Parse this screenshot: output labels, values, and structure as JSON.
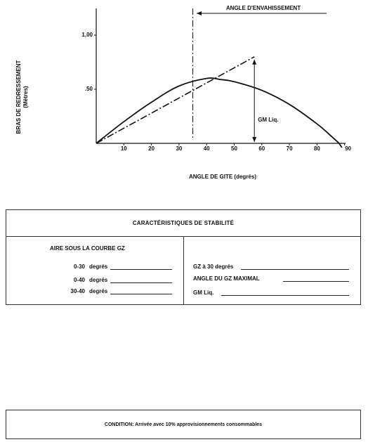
{
  "chart_data": {
    "type": "line",
    "annotation_top": "ANGLE D'ENVAHISSEMENT",
    "annotation_gm": "GM Liq.",
    "ylabel": "BRAS DE REDRESSEMENT",
    "ylabel_unit": "(Mètres)",
    "xlabel": "ANGLE DE GITE (degrés)",
    "y_ticks": [
      ".50",
      "1,00"
    ],
    "x_ticks": [
      "10",
      "20",
      "30",
      "40",
      "50",
      "60",
      "70",
      "80",
      "90"
    ],
    "xlim": [
      0,
      90
    ],
    "ylim": [
      0,
      1.0
    ],
    "downflooding_angle": 35,
    "gz_curve": {
      "x": [
        0,
        10,
        20,
        30,
        40,
        45,
        50,
        60,
        70,
        80,
        85,
        88
      ],
      "y": [
        0,
        0.2,
        0.38,
        0.53,
        0.6,
        0.59,
        0.57,
        0.49,
        0.36,
        0.18,
        0.07,
        0
      ]
    },
    "gm_line": {
      "x": [
        0,
        57.3
      ],
      "y": [
        0,
        0.8
      ]
    }
  },
  "stability": {
    "title": "CARACTÉRISTIQUES DE STABILITÉ",
    "area_heading": "AIRE SOUS LA COURBE GZ",
    "area_rows": [
      {
        "range": "0-30",
        "unit": "degrés"
      },
      {
        "range": "0-40",
        "unit": "degrés"
      },
      {
        "range": "30-40",
        "unit": "degrés"
      }
    ],
    "right_rows": [
      {
        "label": "GZ à 30 degrés"
      },
      {
        "label": "ANGLE DU GZ MAXIMAL"
      },
      {
        "label": "GM Liq."
      }
    ]
  },
  "condition": {
    "text": "CONDITION:  Arrivée avec 10%  approvisionnements consommables"
  }
}
